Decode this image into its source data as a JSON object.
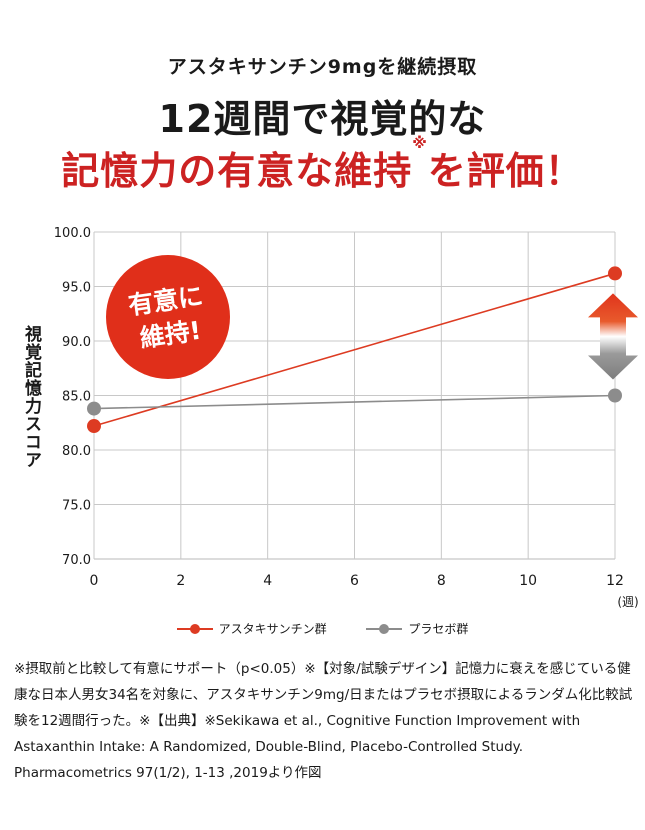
{
  "header": {
    "subtitle": "アスタキサンチン9mgを継続摂取",
    "headline_line1": "12週間で視覚的な",
    "headline_line2": "記憶力の有意な維持",
    "headline_note_mark": "※",
    "headline_line2_end": "を評価！"
  },
  "badge": {
    "line1": "有意に",
    "line2": "維持!"
  },
  "colors": {
    "astaxanthin": "#dd3b22",
    "placebo": "#8c8c8c",
    "grid": "#c8c8c8",
    "badge": "#e02f1a"
  },
  "chart_data": {
    "type": "line",
    "x": [
      0,
      12
    ],
    "series": [
      {
        "name": "アスタキサンチン群",
        "values": [
          82.2,
          96.2
        ]
      },
      {
        "name": "プラセボ群",
        "values": [
          83.8,
          85.0
        ]
      }
    ],
    "ylabel": "視覚記憶力スコア",
    "xlabel": "(週)",
    "xlim": [
      0,
      12
    ],
    "ylim": [
      70.0,
      100.0
    ],
    "xticks": [
      "0",
      "2",
      "4",
      "6",
      "8",
      "10",
      "12"
    ],
    "yticks": [
      "70.0",
      "75.0",
      "80.0",
      "85.0",
      "90.0",
      "95.0",
      "100.0"
    ],
    "grid": true,
    "legend": "bottom"
  },
  "footnote": "※摂取前と比較して有意にサポート（p<0.05）※【対象/試験デザイン】記憶力に衰えを感じている健康な日本人男女34名を対象に、アスタキサンチン9mg/日またはプラセボ摂取によるランダム化比較試験を12週間行った。※【出典】※Sekikawa et al., Cognitive Function Improvement with Astaxanthin Intake: A Randomized, Double-Blind, Placebo-Controlled Study. Pharmacometrics 97(1/2), 1-13 ,2019より作図"
}
